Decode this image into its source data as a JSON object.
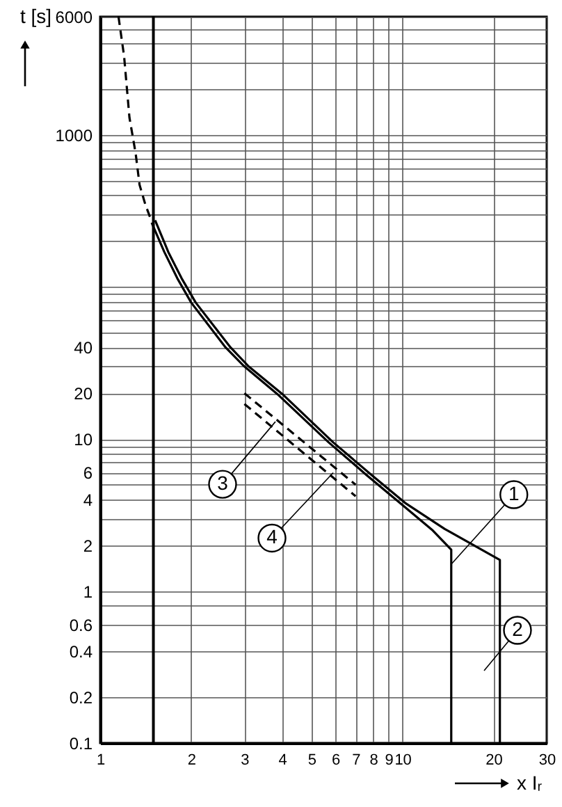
{
  "chart_data": {
    "type": "line",
    "xlabel": "x Iᵣ",
    "ylabel": "t [s]",
    "xlim": [
      1,
      30
    ],
    "ylim": [
      0.1,
      6000
    ],
    "log": "xy",
    "xticks": [
      1,
      2,
      3,
      4,
      5,
      6,
      7,
      8,
      9,
      10,
      20,
      30
    ],
    "yticks": [
      0.1,
      0.2,
      0.4,
      0.6,
      {
        "value": 0.8,
        "label": null
      },
      1,
      2,
      {
        "value": 3,
        "label": null
      },
      4,
      {
        "value": 5,
        "label": null
      },
      6,
      {
        "value": 7,
        "label": null
      },
      {
        "value": 8,
        "label": null
      },
      {
        "value": 9,
        "label": null
      },
      10,
      20,
      {
        "value": 30,
        "label": null
      },
      40,
      {
        "value": 50,
        "label": null
      },
      {
        "value": 60,
        "label": null
      },
      {
        "value": 70,
        "label": null
      },
      {
        "value": 80,
        "label": null
      },
      {
        "value": 90,
        "label": null
      },
      {
        "value": 100,
        "label": null
      },
      {
        "value": 200,
        "label": null
      },
      {
        "value": 300,
        "label": null
      },
      {
        "value": 400,
        "label": null
      },
      {
        "value": 500,
        "label": null
      },
      {
        "value": 600,
        "label": null
      },
      {
        "value": 700,
        "label": null
      },
      {
        "value": 800,
        "label": null
      },
      {
        "value": 900,
        "label": null
      },
      1000,
      {
        "value": 2000,
        "label": null
      },
      {
        "value": 3000,
        "label": null
      },
      {
        "value": 4000,
        "label": null
      },
      {
        "value": 5000,
        "label": null
      },
      6000
    ],
    "grid": true,
    "line_style": "solid",
    "series": [
      {
        "color": "#000000",
        "x": [
          1.48,
          1.63,
          1.8,
          2.0,
          2.6,
          3.0,
          3.85,
          5.7,
          7.6,
          9.8,
          12.6,
          14.5,
          14.5
        ],
        "values": [
          265,
          170,
          114,
          79,
          40,
          30,
          19.8,
          9.5,
          5.8,
          3.8,
          2.5,
          1.87,
          0.1
        ]
      },
      {
        "color": "#000000",
        "x": [
          1.52,
          1.68,
          1.86,
          2.07,
          2.7,
          3.1,
          4.0,
          5.9,
          7.9,
          10.2,
          13.8,
          21,
          21
        ],
        "values": [
          275,
          170,
          114,
          79,
          40,
          30,
          19.8,
          9.5,
          5.8,
          3.8,
          2.56,
          1.6,
          0.1
        ]
      },
      {
        "color": "#000000",
        "line_style": "dashed",
        "x": [
          1.15,
          1.2,
          1.25,
          1.31,
          1.35,
          1.41,
          1.47
        ],
        "values": [
          6000,
          3300,
          1300,
          760,
          470,
          350,
          280
        ]
      },
      {
        "color": "#000000",
        "line_style": "dashed",
        "x": [
          3,
          7
        ],
        "values": [
          20,
          5
        ]
      },
      {
        "color": "#000000",
        "line_style": "dashed",
        "x": [
          3,
          7
        ],
        "values": [
          17,
          4.2
        ]
      }
    ],
    "ref_lines": [
      {
        "axis": "x",
        "value": 1.5,
        "color": "#000000"
      }
    ],
    "annotations": [
      {
        "text": "1",
        "x": 14.5,
        "y": 1.5
      },
      "2",
      {
        "text": "3",
        "x": 3.8,
        "y": 13
      },
      {
        "text": "4",
        "x": 5.9,
        "y": 6
      }
    ]
  }
}
